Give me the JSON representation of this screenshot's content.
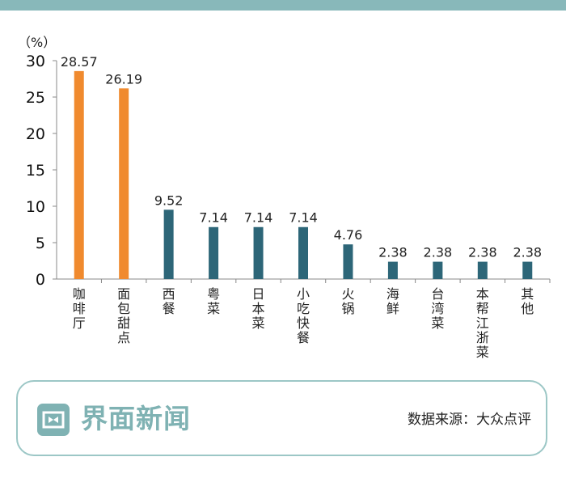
{
  "chart_data": {
    "type": "bar",
    "unit": "（%）",
    "ylim": [
      0,
      30
    ],
    "yticks": [
      0,
      5,
      10,
      15,
      20,
      25,
      30
    ],
    "categories": [
      "咖啡厅",
      "面包甜点",
      "西餐",
      "粤菜",
      "日本菜",
      "小吃快餐",
      "火锅",
      "海鲜",
      "台湾菜",
      "本帮江浙菜",
      "其他"
    ],
    "values": [
      28.57,
      26.19,
      9.52,
      7.14,
      7.14,
      7.14,
      4.76,
      2.38,
      2.38,
      2.38,
      2.38
    ],
    "value_labels": [
      "28.57",
      "26.19",
      "9.52",
      "7.14",
      "7.14",
      "7.14",
      "4.76",
      "2.38",
      "2.38",
      "2.38",
      "2.38"
    ],
    "bar_colors": [
      "#f08a2e",
      "#f08a2e",
      "#2d6678",
      "#2d6678",
      "#2d6678",
      "#2d6678",
      "#2d6678",
      "#2d6678",
      "#2d6678",
      "#2d6678",
      "#2d6678"
    ],
    "grid": false
  },
  "footer": {
    "brand": "界面新闻",
    "source": "数据来源：大众点评",
    "logo_icon": "jiemian-logo-icon"
  },
  "colors": {
    "accent": "#88b8ba",
    "highlight_bar": "#f08a2e",
    "bar": "#2d6678"
  }
}
